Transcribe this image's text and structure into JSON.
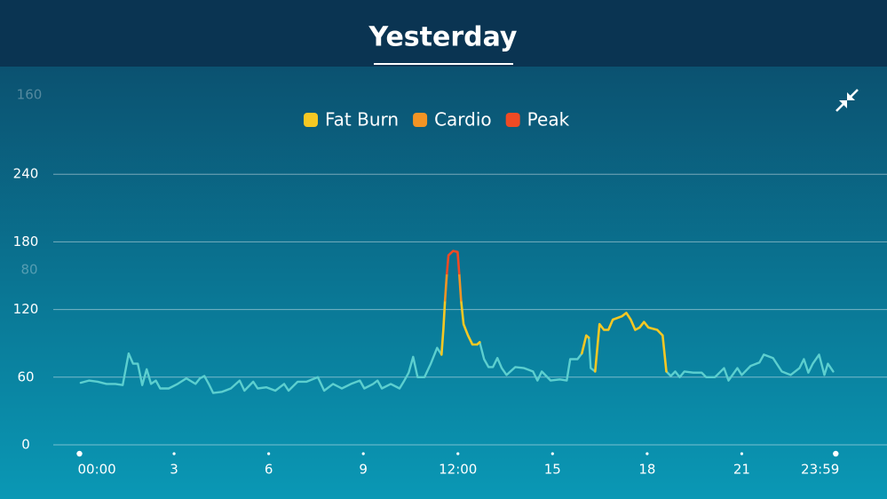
{
  "chart_data": {
    "type": "line",
    "title": "Yesterday",
    "color": "#5ccfcf",
    "xlim": [
      0,
      24
    ],
    "xticks": [
      {
        "value": 0,
        "label": "00:00"
      },
      3,
      6,
      9,
      {
        "value": 12,
        "label": "12:00"
      },
      15,
      18,
      21,
      {
        "value": 23.98,
        "label": "23:59"
      }
    ],
    "ylim": [
      0,
      320
    ],
    "yticks": [
      0,
      60,
      120,
      180,
      240
    ],
    "y2lim": [
      0,
      165
    ],
    "y2ticks": [
      80,
      160
    ],
    "grid": true,
    "x": [
      0.04,
      0.3,
      0.58,
      0.86,
      1.14,
      1.37,
      1.56,
      1.7,
      1.85,
      1.99,
      2.13,
      2.27,
      2.42,
      2.56,
      2.83,
      3.11,
      3.39,
      3.68,
      3.82,
      3.96,
      4.1,
      4.24,
      4.52,
      4.8,
      5.08,
      5.23,
      5.51,
      5.65,
      5.93,
      6.21,
      6.49,
      6.63,
      6.92,
      7.2,
      7.56,
      7.76,
      8.04,
      8.32,
      8.61,
      8.89,
      9.03,
      9.31,
      9.45,
      9.59,
      9.87,
      10.15,
      10.3,
      10.44,
      10.58,
      10.72,
      10.94,
      11.14,
      11.34,
      11.48,
      11.54,
      11.59,
      11.65,
      11.7,
      11.85,
      11.99,
      12.04,
      12.1,
      12.18,
      12.32,
      12.46,
      12.61,
      12.69,
      12.83,
      12.97,
      13.11,
      13.25,
      13.39,
      13.54,
      13.82,
      14.1,
      14.38,
      14.52,
      14.66,
      14.94,
      15.23,
      15.45,
      15.56,
      15.79,
      15.93,
      16.07,
      16.15,
      16.21,
      16.35,
      16.49,
      16.63,
      16.77,
      16.91,
      17.2,
      17.34,
      17.48,
      17.62,
      17.76,
      17.9,
      18.04,
      18.32,
      18.49,
      18.61,
      18.75,
      18.89,
      19.03,
      19.18,
      19.46,
      19.73,
      19.87,
      20.15,
      20.44,
      20.58,
      20.86,
      21.0,
      21.28,
      21.56,
      21.7,
      21.99,
      22.27,
      22.55,
      22.83,
      22.97,
      23.11,
      23.25,
      23.45,
      23.62,
      23.73,
      23.9
    ],
    "values": [
      55,
      57,
      56,
      54,
      54,
      53,
      81,
      72,
      72,
      53,
      67,
      54,
      57,
      50,
      50,
      54,
      59,
      54,
      59,
      61,
      54,
      46,
      47,
      50,
      57,
      48,
      56,
      50,
      51,
      48,
      54,
      48,
      56,
      56,
      60,
      48,
      54,
      50,
      54,
      57,
      50,
      54,
      57,
      50,
      54,
      50,
      57,
      64,
      78,
      60,
      60,
      72,
      86,
      80,
      null,
      null,
      null,
      null,
      null,
      null,
      null,
      null,
      null,
      null,
      null,
      null,
      91,
      76,
      69,
      69,
      77,
      68,
      62,
      69,
      68,
      65,
      57,
      65,
      57,
      58,
      57,
      76,
      76,
      81,
      null,
      95,
      68,
      65,
      null,
      null,
      null,
      null,
      null,
      null,
      null,
      null,
      null,
      null,
      null,
      null,
      null,
      65,
      61,
      65,
      60,
      65,
      64,
      64,
      60,
      60,
      68,
      57,
      68,
      62,
      70,
      73,
      80,
      77,
      65,
      62,
      68,
      76,
      64,
      72,
      80,
      62,
      72,
      65
    ],
    "series": [
      {
        "name": "Fat Burn",
        "color": "#f6c823",
        "values": [
          null,
          null,
          null,
          null,
          null,
          null,
          null,
          null,
          null,
          null,
          null,
          null,
          null,
          null,
          null,
          null,
          null,
          null,
          null,
          null,
          null,
          null,
          null,
          null,
          null,
          null,
          null,
          null,
          null,
          null,
          null,
          null,
          null,
          null,
          null,
          null,
          null,
          null,
          null,
          null,
          null,
          null,
          null,
          null,
          null,
          null,
          null,
          null,
          null,
          null,
          null,
          null,
          null,
          80,
          103,
          128,
          null,
          null,
          null,
          null,
          null,
          128,
          107,
          97,
          89,
          89,
          91,
          null,
          null,
          null,
          null,
          null,
          null,
          null,
          null,
          null,
          null,
          null,
          null,
          null,
          null,
          null,
          null,
          81,
          97,
          95,
          null,
          65,
          107,
          102,
          102,
          111,
          114,
          117,
          111,
          102,
          104,
          109,
          104,
          102,
          97,
          65,
          null,
          null,
          null,
          null,
          null,
          null,
          null,
          null,
          null,
          null,
          null,
          null,
          null,
          null,
          null,
          null,
          null,
          null,
          null,
          null,
          null,
          null,
          null,
          null,
          null,
          null
        ]
      },
      {
        "name": "Cardio",
        "color": "#f39424",
        "values": [
          null,
          null,
          null,
          null,
          null,
          null,
          null,
          null,
          null,
          null,
          null,
          null,
          null,
          null,
          null,
          null,
          null,
          null,
          null,
          null,
          null,
          null,
          null,
          null,
          null,
          null,
          null,
          null,
          null,
          null,
          null,
          null,
          null,
          null,
          null,
          null,
          null,
          null,
          null,
          null,
          null,
          null,
          null,
          null,
          null,
          null,
          null,
          null,
          null,
          null,
          null,
          null,
          null,
          null,
          null,
          128,
          152,
          null,
          null,
          null,
          152,
          128,
          null,
          null,
          null,
          null,
          null,
          null,
          null,
          null,
          null,
          null,
          null,
          null,
          null,
          null,
          null,
          null,
          null,
          null,
          null,
          null,
          null,
          null,
          null,
          null,
          null,
          null,
          null,
          null,
          null,
          null,
          null,
          null,
          null,
          null,
          null,
          null,
          null,
          null,
          null,
          null,
          null,
          null,
          null,
          null,
          null,
          null,
          null,
          null,
          null,
          null,
          null,
          null,
          null,
          null,
          null,
          null,
          null,
          null,
          null,
          null,
          null,
          null,
          null,
          null,
          null,
          null
        ]
      },
      {
        "name": "Peak",
        "color": "#ef4a24",
        "values": [
          null,
          null,
          null,
          null,
          null,
          null,
          null,
          null,
          null,
          null,
          null,
          null,
          null,
          null,
          null,
          null,
          null,
          null,
          null,
          null,
          null,
          null,
          null,
          null,
          null,
          null,
          null,
          null,
          null,
          null,
          null,
          null,
          null,
          null,
          null,
          null,
          null,
          null,
          null,
          null,
          null,
          null,
          null,
          null,
          null,
          null,
          null,
          null,
          null,
          null,
          null,
          null,
          null,
          null,
          null,
          null,
          152,
          168,
          172,
          171,
          152,
          null,
          null,
          null,
          null,
          null,
          null,
          null,
          null,
          null,
          null,
          null,
          null,
          null,
          null,
          null,
          null,
          null,
          null,
          null,
          null,
          null,
          null,
          null,
          null,
          null,
          null,
          null,
          null,
          null,
          null,
          null,
          null,
          null,
          null,
          null,
          null,
          null,
          null,
          null,
          null,
          null,
          null,
          null,
          null,
          null,
          null,
          null,
          null,
          null,
          null,
          null,
          null,
          null,
          null,
          null,
          null,
          null,
          null,
          null,
          null,
          null,
          null,
          null,
          null,
          null,
          null,
          null
        ]
      }
    ]
  }
}
